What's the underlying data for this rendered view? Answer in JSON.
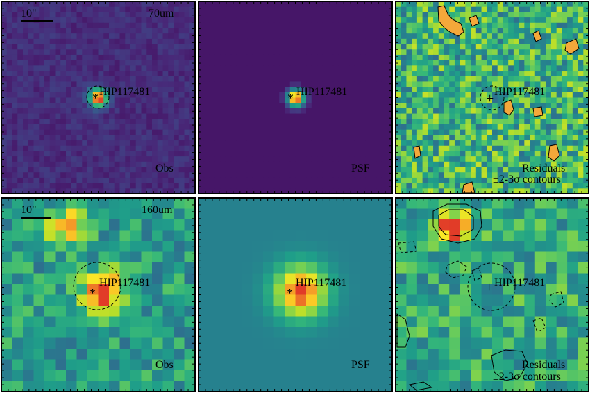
{
  "scale_bar": {
    "label": "10\""
  },
  "bands": {
    "row1": "70um",
    "row2": "160um"
  },
  "target": {
    "name": "HIP117481"
  },
  "panel_labels": {
    "obs": "Obs",
    "psf": "PSF",
    "residuals": "Residuals",
    "contours": "±2-3σ contours"
  },
  "colors": {
    "psf70_background": "#5b2a86",
    "psf160_background": "#4a90c8",
    "frame": "#000000",
    "peak": "#e03a2a"
  }
}
